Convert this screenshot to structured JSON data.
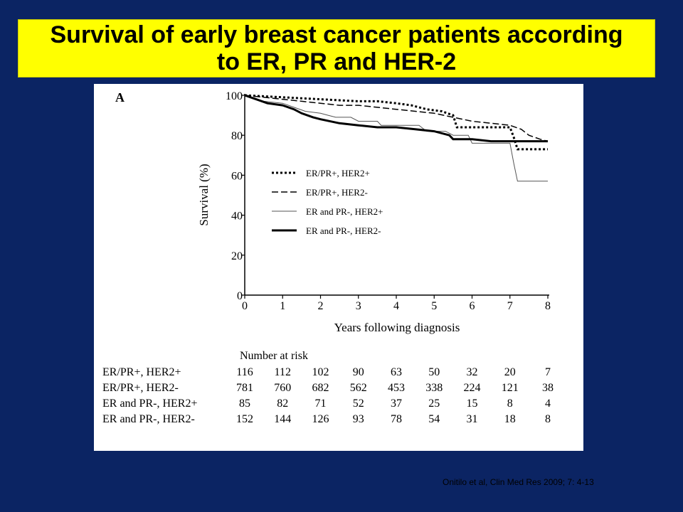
{
  "slide": {
    "title_line1": "Survival of early breast cancer patients according",
    "title_line2": "to ER, PR and HER-2",
    "citation": "Onitilo et al, Clin Med Res 2009; 7: 4-13",
    "title_bg": "#ffff00",
    "slide_bg": "#0b2463"
  },
  "chart_data": {
    "type": "line",
    "panel_label": "A",
    "xlabel": "Years following diagnosis",
    "ylabel": "Survival (%)",
    "xlim": [
      0,
      8
    ],
    "ylim": [
      0,
      100
    ],
    "x_ticks": [
      0,
      1,
      2,
      3,
      4,
      5,
      6,
      7,
      8
    ],
    "y_ticks": [
      0,
      20,
      40,
      60,
      80,
      100
    ],
    "grid": false,
    "legend_position": "center-left",
    "series": [
      {
        "name": "ER/PR+, HER2+",
        "style": "dotted",
        "line_width": "thick",
        "points": [
          [
            0,
            100
          ],
          [
            0.5,
            99.5
          ],
          [
            1,
            99
          ],
          [
            1.5,
            98.5
          ],
          [
            2,
            98
          ],
          [
            2.5,
            97.5
          ],
          [
            3,
            97
          ],
          [
            3.5,
            97
          ],
          [
            4,
            96
          ],
          [
            4.4,
            95
          ],
          [
            4.8,
            93
          ],
          [
            5.2,
            92
          ],
          [
            5.5,
            90
          ],
          [
            5.6,
            84
          ],
          [
            6,
            84
          ],
          [
            6.5,
            84
          ],
          [
            7,
            84
          ],
          [
            7.1,
            79
          ],
          [
            7.2,
            73
          ],
          [
            7.5,
            73
          ],
          [
            8,
            73
          ]
        ]
      },
      {
        "name": "ER/PR+, HER2-",
        "style": "dashed",
        "line_width": "medium",
        "points": [
          [
            0,
            100
          ],
          [
            0.5,
            99
          ],
          [
            1,
            98
          ],
          [
            1.5,
            97
          ],
          [
            2,
            96
          ],
          [
            2.5,
            95
          ],
          [
            3,
            95
          ],
          [
            3.5,
            94
          ],
          [
            4,
            93
          ],
          [
            4.5,
            92
          ],
          [
            5,
            91
          ],
          [
            5.5,
            89
          ],
          [
            6,
            87
          ],
          [
            6.5,
            86
          ],
          [
            7,
            85
          ],
          [
            7.3,
            83
          ],
          [
            7.5,
            80
          ],
          [
            7.8,
            78
          ],
          [
            8,
            77
          ]
        ]
      },
      {
        "name": "ER and PR-, HER2+",
        "style": "solid",
        "line_width": "thin",
        "points": [
          [
            0,
            100
          ],
          [
            0.5,
            97
          ],
          [
            1,
            96
          ],
          [
            1.3,
            94
          ],
          [
            1.6,
            92
          ],
          [
            2,
            91
          ],
          [
            2.2,
            90
          ],
          [
            2.4,
            89
          ],
          [
            2.8,
            89
          ],
          [
            3,
            87
          ],
          [
            3.5,
            87
          ],
          [
            3.6,
            85
          ],
          [
            4,
            85
          ],
          [
            4.6,
            85
          ],
          [
            4.8,
            82
          ],
          [
            5,
            82
          ],
          [
            5.3,
            82
          ],
          [
            5.5,
            80
          ],
          [
            5.9,
            80
          ],
          [
            6,
            76
          ],
          [
            6.5,
            76
          ],
          [
            7,
            76
          ],
          [
            7.1,
            66
          ],
          [
            7.2,
            57
          ],
          [
            7.5,
            57
          ],
          [
            8,
            57
          ]
        ]
      },
      {
        "name": "ER and PR-, HER2-",
        "style": "solid",
        "line_width": "thick",
        "points": [
          [
            0,
            100
          ],
          [
            0.3,
            98
          ],
          [
            0.6,
            96
          ],
          [
            1,
            95
          ],
          [
            1.3,
            93
          ],
          [
            1.5,
            91
          ],
          [
            1.8,
            89
          ],
          [
            2,
            88
          ],
          [
            2.5,
            86
          ],
          [
            3,
            85
          ],
          [
            3.5,
            84
          ],
          [
            4,
            84
          ],
          [
            4.5,
            83
          ],
          [
            5,
            82
          ],
          [
            5.4,
            80
          ],
          [
            5.5,
            78
          ],
          [
            6,
            78
          ],
          [
            6.5,
            77
          ],
          [
            7,
            77
          ],
          [
            7.5,
            77
          ],
          [
            8,
            77
          ]
        ]
      }
    ],
    "risk_table": {
      "header": "Number at risk",
      "columns": [
        "0",
        "1",
        "2",
        "3",
        "4",
        "5",
        "6",
        "7",
        "8"
      ],
      "rows": [
        {
          "label": "ER/PR+, HER2+",
          "values": [
            "116",
            "112",
            "102",
            "90",
            "63",
            "50",
            "32",
            "20",
            "7"
          ]
        },
        {
          "label": "ER/PR+, HER2-",
          "values": [
            "781",
            "760",
            "682",
            "562",
            "453",
            "338",
            "224",
            "121",
            "38"
          ]
        },
        {
          "label": "ER and PR-, HER2+",
          "values": [
            "85",
            "82",
            "71",
            "52",
            "37",
            "25",
            "15",
            "8",
            "4"
          ]
        },
        {
          "label": "ER and PR-, HER2-",
          "values": [
            "152",
            "144",
            "126",
            "93",
            "78",
            "54",
            "31",
            "18",
            "8"
          ]
        }
      ]
    }
  }
}
